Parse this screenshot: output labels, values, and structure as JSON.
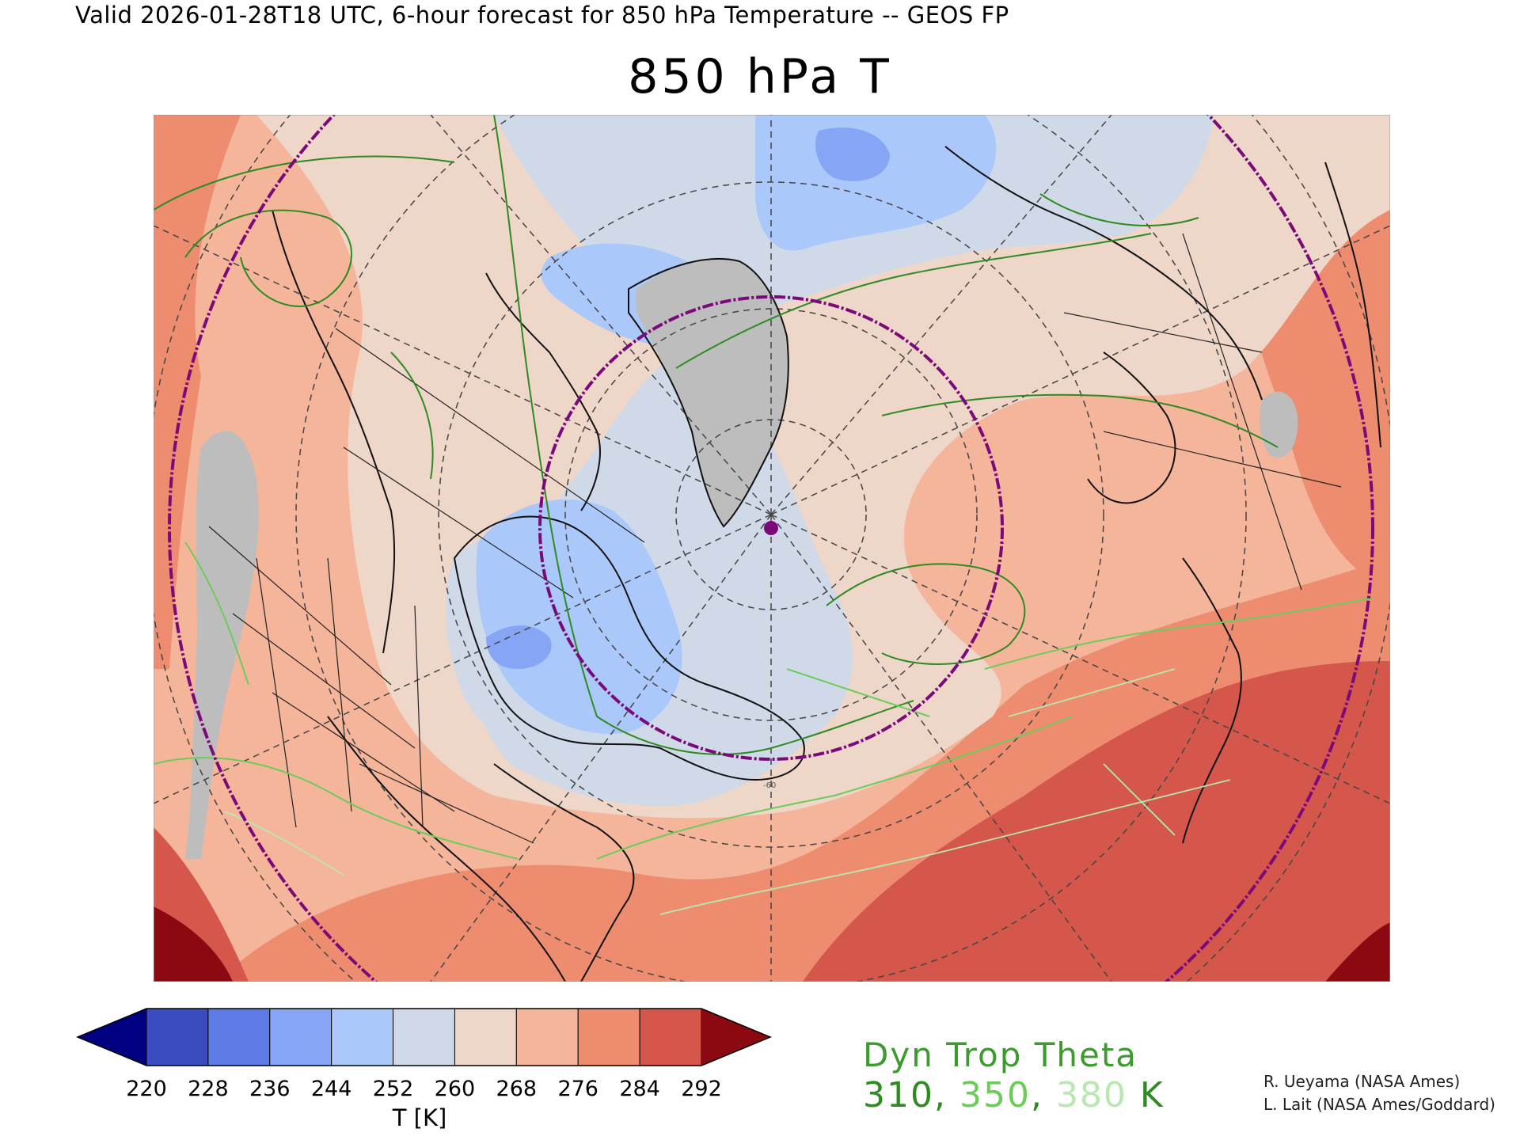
{
  "header": {
    "valid_line": "Valid 2026-01-28T18 UTC, 6-hour forecast for 850 hPa Temperature -- GEOS FP"
  },
  "map": {
    "title": "850 hPa T",
    "projection": "north-polar-stereographic",
    "contour_label": "-60",
    "circle_color": "#7a0a7a",
    "point_color": "#7a0a7a",
    "land_mask_color": "#bdbdbd"
  },
  "colorbar": {
    "ticks": [
      "220",
      "228",
      "236",
      "244",
      "252",
      "260",
      "268",
      "276",
      "284",
      "292"
    ],
    "colors": [
      "#000080",
      "#3a4cc0",
      "#5f7ce6",
      "#86a5f5",
      "#abc8fa",
      "#d0d9e8",
      "#eed6c9",
      "#f4b59a",
      "#ee8c6f",
      "#d5574b",
      "#8b0a12"
    ],
    "unit": "T [K]"
  },
  "legend": {
    "title": "Dyn Trop Theta",
    "values": [
      {
        "text": "310",
        "color": "#2e8b22"
      },
      {
        "text": ", ",
        "color": "#2e8b22"
      },
      {
        "text": "350",
        "color": "#6ccc5a"
      },
      {
        "text": ", ",
        "color": "#2e8b22"
      },
      {
        "text": "380",
        "color": "#b8e8b0"
      },
      {
        "text": " K",
        "color": "#2e8b22"
      }
    ],
    "title_color": "#3d9a2e"
  },
  "credits": {
    "line1": "R. Ueyama (NASA Ames)",
    "line2": "L. Lait (NASA Ames/Goddard)"
  }
}
